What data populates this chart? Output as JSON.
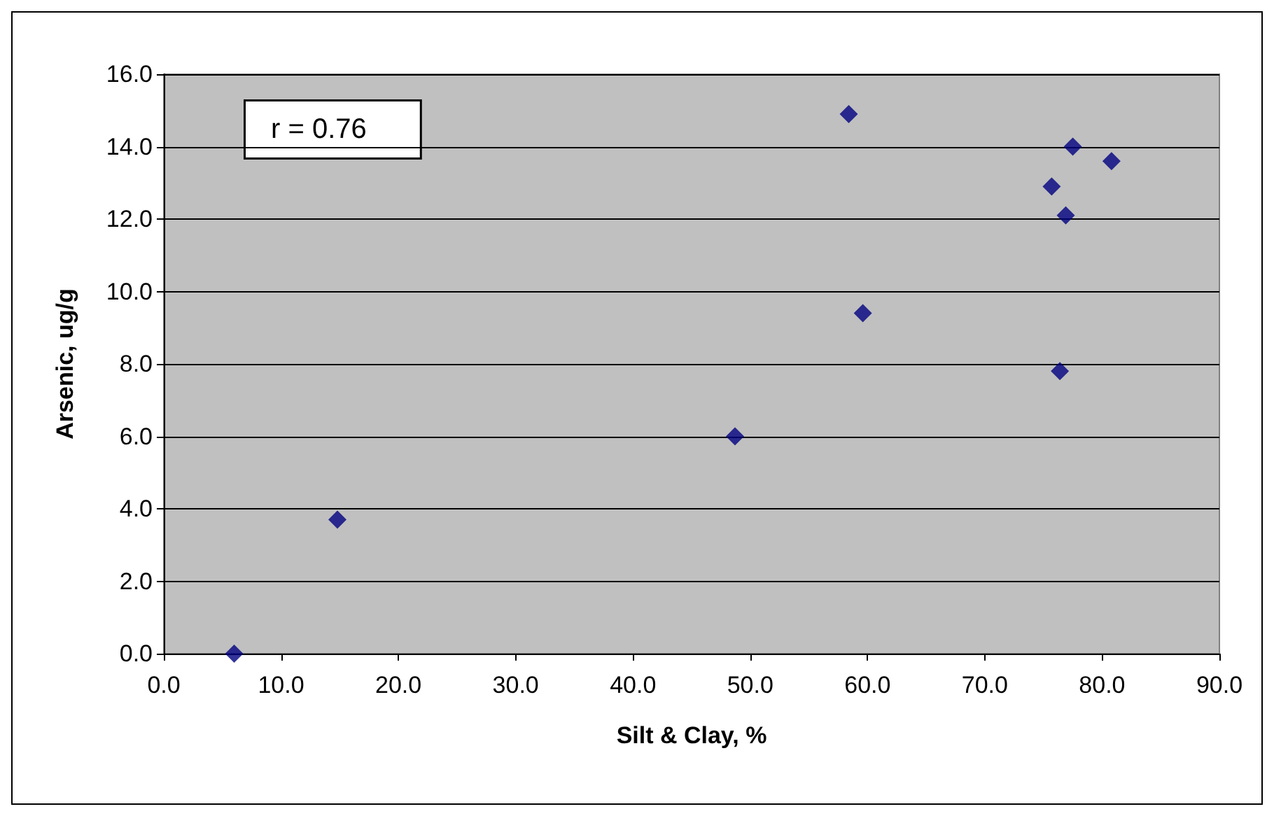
{
  "chart_data": {
    "type": "scatter",
    "xlabel": "Silt & Clay, %",
    "ylabel": "Arsenic, ug/g",
    "annotations": [
      "r = 0.76"
    ],
    "x": [
      6.0,
      14.8,
      48.7,
      58.4,
      59.6,
      75.7,
      76.4,
      76.9,
      77.5,
      80.8
    ],
    "series": [
      {
        "color": "#000080",
        "values": [
          0.0,
          3.7,
          6.0,
          14.9,
          9.4,
          12.9,
          7.8,
          12.1,
          14.0,
          13.6
        ]
      }
    ],
    "marker": "diamond",
    "grid": "y",
    "legend": false,
    "xlim": [
      0,
      90
    ],
    "xticks": [
      {
        "value": 0,
        "label": "0.0"
      },
      {
        "value": 10,
        "label": "10.0"
      },
      {
        "value": 20,
        "label": "20.0"
      },
      {
        "value": 30,
        "label": "30.0"
      },
      {
        "value": 40,
        "label": "40.0"
      },
      {
        "value": 50,
        "label": "50.0"
      },
      {
        "value": 60,
        "label": "60.0"
      },
      {
        "value": 70,
        "label": "70.0"
      },
      {
        "value": 80,
        "label": "80.0"
      },
      {
        "value": 90,
        "label": "90.0"
      }
    ],
    "ylim": [
      0,
      16
    ],
    "yticks": [
      {
        "value": 0,
        "label": "0.0"
      },
      {
        "value": 2,
        "label": "2.0"
      },
      {
        "value": 4,
        "label": "4.0"
      },
      {
        "value": 6,
        "label": "6.0"
      },
      {
        "value": 8,
        "label": "8.0"
      },
      {
        "value": 10,
        "label": "10.0"
      },
      {
        "value": 12,
        "label": "12.0"
      },
      {
        "value": 14,
        "label": "14.0"
      },
      {
        "value": 16,
        "label": "16.0"
      }
    ]
  }
}
